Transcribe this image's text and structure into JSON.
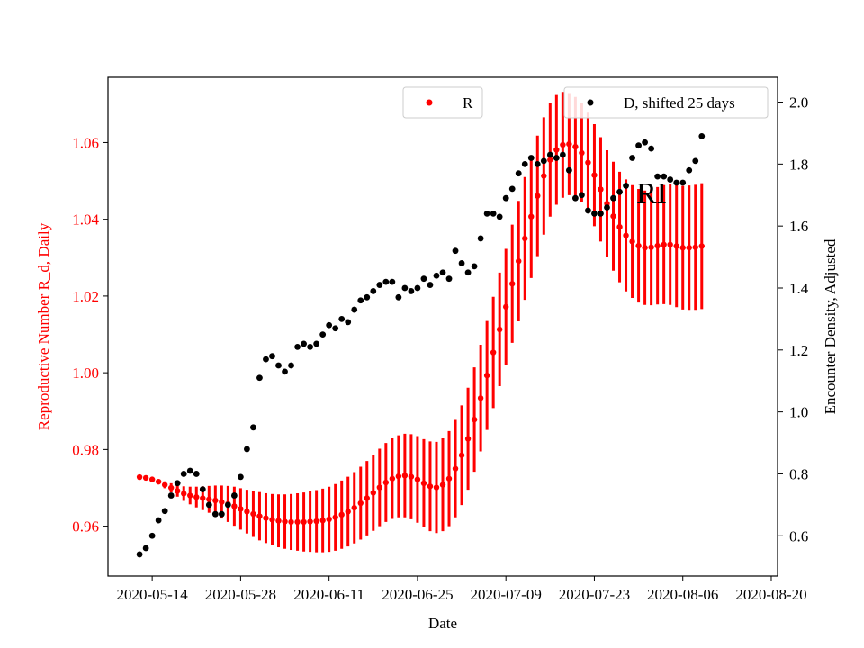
{
  "chart_data": {
    "type": "scatter",
    "xlabel": "Date",
    "ylabel_left": "Reproductive Number R_d, Daily",
    "ylabel_right": "Encounter Density, Adjusted",
    "annotation": "RI",
    "x_ticks": [
      "2020-05-14",
      "2020-05-28",
      "2020-06-11",
      "2020-06-25",
      "2020-07-09",
      "2020-07-23",
      "2020-08-06",
      "2020-08-20"
    ],
    "y_left_ticks": [
      "0.96",
      "0.98",
      "1.00",
      "1.02",
      "1.04",
      "1.06"
    ],
    "y_right_ticks": [
      "0.6",
      "0.8",
      "1.0",
      "1.2",
      "1.4",
      "1.6",
      "1.8",
      "2.0"
    ],
    "x_range": [
      "2020-05-07",
      "2020-08-21"
    ],
    "ylim_left": [
      0.947,
      1.077
    ],
    "ylim_right": [
      0.47,
      2.08
    ],
    "legend_placement": "top-center and top-right",
    "colors": {
      "R": "#ff0000",
      "D": "#000000",
      "left_axis": "#ff0000",
      "right_axis": "#000000"
    },
    "series": [
      {
        "name": "R",
        "axis": "left",
        "start_date": "2020-05-12",
        "values": [
          0.9728,
          0.9726,
          0.9722,
          0.9716,
          0.9708,
          0.97,
          0.9692,
          0.9685,
          0.968,
          0.9676,
          0.9673,
          0.967,
          0.9667,
          0.9663,
          0.9658,
          0.9652,
          0.9645,
          0.9638,
          0.9632,
          0.9626,
          0.9621,
          0.9617,
          0.9614,
          0.9612,
          0.9611,
          0.9611,
          0.9611,
          0.9612,
          0.9613,
          0.9615,
          0.9618,
          0.9623,
          0.963,
          0.9638,
          0.9648,
          0.966,
          0.9673,
          0.9687,
          0.9701,
          0.9714,
          0.9724,
          0.973,
          0.9732,
          0.9729,
          0.9722,
          0.9712,
          0.9704,
          0.9701,
          0.9708,
          0.9724,
          0.975,
          0.9785,
          0.9828,
          0.9878,
          0.9934,
          0.9993,
          1.0053,
          1.0113,
          1.0172,
          1.0232,
          1.0291,
          1.035,
          1.0407,
          1.0461,
          1.0513,
          1.0555,
          1.0581,
          1.0594,
          1.0596,
          1.0589,
          1.0573,
          1.0548,
          1.0515,
          1.0478,
          1.0441,
          1.0408,
          1.038,
          1.0358,
          1.0342,
          1.0331,
          1.0326,
          1.0327,
          1.0331,
          1.0334,
          1.0334,
          1.033,
          1.0326,
          1.0326,
          1.0327,
          1.033
        ],
        "error": [
          0.0,
          0.0002,
          0.0004,
          0.0006,
          0.0009,
          0.0012,
          0.0015,
          0.0019,
          0.0023,
          0.0027,
          0.0031,
          0.0035,
          0.0039,
          0.0043,
          0.0047,
          0.0051,
          0.0054,
          0.0057,
          0.006,
          0.0063,
          0.0065,
          0.0067,
          0.0069,
          0.0071,
          0.0073,
          0.0075,
          0.0077,
          0.0079,
          0.0081,
          0.0083,
          0.0085,
          0.0087,
          0.0089,
          0.0091,
          0.0093,
          0.0095,
          0.0097,
          0.0099,
          0.0101,
          0.0103,
          0.0105,
          0.0107,
          0.0109,
          0.0111,
          0.0113,
          0.0115,
          0.0117,
          0.0119,
          0.0121,
          0.0124,
          0.0127,
          0.013,
          0.0133,
          0.0136,
          0.0139,
          0.0142,
          0.0145,
          0.0148,
          0.0151,
          0.0154,
          0.0157,
          0.016,
          0.016,
          0.0157,
          0.0153,
          0.0148,
          0.0143,
          0.0138,
          0.0133,
          0.013,
          0.0129,
          0.013,
          0.0133,
          0.0136,
          0.0139,
          0.0142,
          0.0144,
          0.0146,
          0.0147,
          0.0148,
          0.0149,
          0.0151,
          0.0153,
          0.0155,
          0.0157,
          0.0159,
          0.0161,
          0.0162,
          0.0163,
          0.0164
        ]
      },
      {
        "name": "D, shifted 25 days",
        "axis": "right",
        "start_date": "2020-05-12",
        "values": [
          0.54,
          0.56,
          0.6,
          0.65,
          0.68,
          0.73,
          0.77,
          0.8,
          0.81,
          0.8,
          0.75,
          0.7,
          0.67,
          0.67,
          0.7,
          0.73,
          0.79,
          0.88,
          0.95,
          1.11,
          1.17,
          1.18,
          1.15,
          1.13,
          1.15,
          1.21,
          1.22,
          1.21,
          1.22,
          1.25,
          1.28,
          1.27,
          1.3,
          1.29,
          1.33,
          1.36,
          1.37,
          1.39,
          1.41,
          1.42,
          1.42,
          1.37,
          1.4,
          1.39,
          1.4,
          1.43,
          1.41,
          1.44,
          1.45,
          1.43,
          1.52,
          1.48,
          1.45,
          1.47,
          1.56,
          1.64,
          1.64,
          1.63,
          1.69,
          1.72,
          1.77,
          1.8,
          1.82,
          1.8,
          1.81,
          1.83,
          1.82,
          1.83,
          1.78,
          1.69,
          1.7,
          1.65,
          1.64,
          1.64,
          1.66,
          1.69,
          1.71,
          1.73,
          1.82,
          1.86,
          1.87,
          1.85,
          1.76,
          1.76,
          1.75,
          1.74,
          1.74,
          1.78,
          1.81,
          1.89
        ]
      }
    ]
  }
}
